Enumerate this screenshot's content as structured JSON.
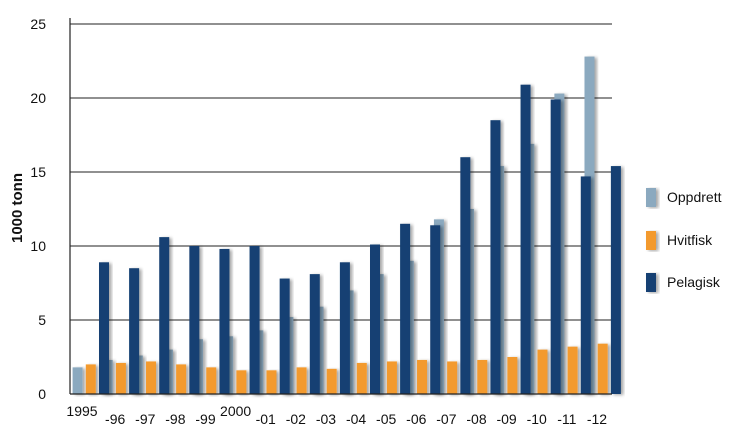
{
  "chart_data": {
    "type": "bar",
    "title": "",
    "xlabel": "",
    "ylabel": "1000 tonn",
    "ylim": [
      0,
      25
    ],
    "yticks": [
      0,
      5,
      10,
      15,
      20,
      25
    ],
    "grid": true,
    "legend_position": "right",
    "categories": [
      "1995",
      "-96",
      "-97",
      "-98",
      "-99",
      "2000",
      "-01",
      "-02",
      "-03",
      "-04",
      "-05",
      "-06",
      "-07",
      "-08",
      "-09",
      "-10",
      "-11",
      "-12"
    ],
    "series": [
      {
        "name": "Oppdrett",
        "color": "#8ba9bf",
        "values": [
          1.8,
          2.3,
          2.6,
          3.0,
          3.7,
          3.9,
          4.3,
          5.2,
          5.9,
          7.0,
          8.1,
          9.0,
          11.8,
          12.5,
          15.4,
          16.9,
          20.3,
          22.8
        ]
      },
      {
        "name": "Hvitfisk",
        "color": "#f39a2e",
        "values": [
          2.0,
          2.1,
          2.2,
          2.0,
          1.8,
          1.6,
          1.6,
          1.8,
          1.7,
          2.1,
          2.2,
          2.3,
          2.2,
          2.3,
          2.5,
          3.0,
          3.2,
          3.4
        ]
      },
      {
        "name": "Pelagisk",
        "color": "#123f73",
        "values": [
          8.9,
          8.5,
          10.6,
          10.0,
          9.8,
          10.0,
          7.8,
          8.1,
          8.9,
          10.1,
          11.5,
          11.4,
          16.0,
          18.5,
          20.9,
          19.9,
          14.7,
          15.4
        ]
      }
    ]
  }
}
